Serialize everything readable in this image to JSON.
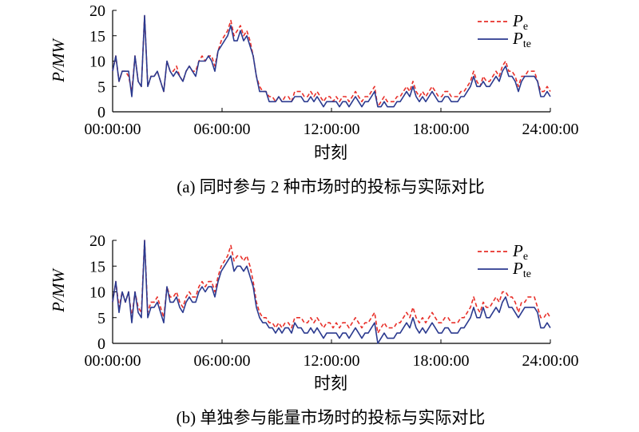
{
  "chart_data": [
    {
      "type": "line",
      "caption": "(a) 同时参与 2 种市场时的投标与实际对比",
      "xlabel": "时刻",
      "ylabel": "P/MW",
      "x_tick_labels": [
        "00:00:00",
        "06:00:00",
        "12:00:00",
        "18:00:00",
        "24:00:00"
      ],
      "xlim": [
        0,
        24
      ],
      "ylim": [
        0,
        20
      ],
      "y_ticks": [
        0,
        5,
        10,
        15,
        20
      ],
      "legend_position": "top-right",
      "colors": {
        "Pe": "#e8302a",
        "Pte": "#2b3a8f"
      },
      "series": [
        {
          "name": "Pe",
          "legend": {
            "main": "P",
            "sub": "e"
          },
          "style": "dashed",
          "color": "#e8302a",
          "values": [
            8,
            11,
            6,
            8,
            8,
            7,
            4,
            11,
            6,
            5,
            19,
            5,
            7,
            7,
            8,
            6,
            4,
            10,
            8,
            8,
            9,
            7,
            6,
            8,
            9,
            8,
            8,
            10,
            11,
            10,
            11,
            11,
            9,
            12,
            14,
            15,
            16,
            18,
            15,
            16,
            17,
            15,
            16,
            14,
            11,
            7,
            5,
            4,
            4,
            3,
            3,
            2,
            3,
            2,
            3,
            3,
            2,
            4,
            4,
            4,
            3,
            3,
            4,
            3,
            4,
            3,
            2,
            3,
            3,
            2,
            3,
            2,
            3,
            3,
            2,
            3,
            4,
            3,
            2,
            3,
            3,
            4,
            5,
            1,
            2,
            3,
            2,
            2,
            2,
            3,
            3,
            4,
            5,
            4,
            6,
            4,
            3,
            4,
            3,
            4,
            5,
            4,
            3,
            3,
            4,
            4,
            3,
            3,
            3,
            4,
            4,
            5,
            6,
            8,
            6,
            5,
            7,
            6,
            6,
            7,
            8,
            7,
            9,
            10,
            8,
            8,
            7,
            5,
            7,
            7,
            8,
            8,
            8,
            6,
            4,
            4,
            5,
            4
          ]
        },
        {
          "name": "Pte",
          "legend": {
            "main": "P",
            "sub": "te"
          },
          "style": "solid",
          "color": "#2b3a8f",
          "values": [
            8,
            11,
            6,
            8,
            8,
            8,
            3,
            11,
            6,
            5,
            19,
            5,
            7,
            7,
            8,
            6,
            4,
            10,
            8,
            7,
            8,
            7,
            6,
            8,
            9,
            8,
            7,
            10,
            10,
            10,
            11,
            10,
            8,
            12,
            13,
            14,
            15,
            17,
            14,
            14,
            16,
            14,
            15,
            13,
            11,
            7,
            4,
            4,
            4,
            2,
            2,
            2,
            3,
            2,
            2,
            2,
            2,
            3,
            3,
            3,
            2,
            2,
            3,
            2,
            3,
            2,
            1,
            2,
            2,
            2,
            2,
            1,
            2,
            2,
            1,
            2,
            3,
            2,
            1,
            2,
            2,
            3,
            4,
            1,
            1,
            2,
            1,
            1,
            1,
            2,
            2,
            3,
            4,
            3,
            5,
            3,
            2,
            3,
            2,
            3,
            4,
            3,
            2,
            2,
            3,
            3,
            2,
            2,
            2,
            3,
            3,
            4,
            5,
            7,
            5,
            5,
            6,
            5,
            5,
            6,
            7,
            6,
            8,
            9,
            7,
            7,
            6,
            4,
            6,
            7,
            7,
            7,
            7,
            6,
            3,
            3,
            4,
            3
          ]
        }
      ]
    },
    {
      "type": "line",
      "caption": "(b) 单独参与能量市场时的投标与实际对比",
      "xlabel": "时刻",
      "ylabel": "P/MW",
      "x_tick_labels": [
        "00:00:00",
        "06:00:00",
        "12:00:00",
        "18:00:00",
        "24:00:00"
      ],
      "xlim": [
        0,
        24
      ],
      "ylim": [
        0,
        20
      ],
      "y_ticks": [
        0,
        5,
        10,
        15,
        20
      ],
      "legend_position": "top-right",
      "colors": {
        "Pe": "#e8302a",
        "Pte": "#2b3a8f"
      },
      "series": [
        {
          "name": "Pe",
          "legend": {
            "main": "P",
            "sub": "e"
          },
          "style": "dashed",
          "color": "#e8302a",
          "values": [
            8,
            12,
            7,
            10,
            8,
            10,
            5,
            10,
            7,
            6,
            20,
            6,
            8,
            8,
            9,
            7,
            5,
            11,
            9,
            9,
            10,
            8,
            7,
            9,
            10,
            9,
            9,
            11,
            12,
            11,
            12,
            12,
            10,
            13,
            15,
            16,
            17,
            19,
            16,
            17,
            17,
            16,
            17,
            15,
            12,
            8,
            6,
            5,
            5,
            4,
            4,
            3,
            4,
            3,
            4,
            4,
            3,
            5,
            5,
            5,
            4,
            4,
            5,
            4,
            5,
            4,
            3,
            4,
            4,
            3,
            4,
            3,
            4,
            4,
            3,
            4,
            5,
            4,
            3,
            4,
            4,
            5,
            6,
            2,
            3,
            4,
            3,
            3,
            3,
            4,
            4,
            5,
            6,
            5,
            7,
            5,
            4,
            5,
            4,
            5,
            6,
            5,
            4,
            4,
            5,
            5,
            4,
            4,
            4,
            5,
            5,
            6,
            7,
            9,
            7,
            6,
            8,
            7,
            7,
            8,
            9,
            8,
            10,
            10,
            9,
            9,
            8,
            6,
            8,
            8,
            9,
            9,
            9,
            7,
            5,
            5,
            6,
            5
          ]
        },
        {
          "name": "Pte",
          "legend": {
            "main": "P",
            "sub": "te"
          },
          "style": "solid",
          "color": "#2b3a8f",
          "values": [
            8,
            12,
            6,
            10,
            8,
            10,
            4,
            10,
            6,
            5,
            20,
            5,
            7,
            7,
            8,
            6,
            4,
            11,
            8,
            8,
            9,
            7,
            6,
            8,
            9,
            8,
            8,
            10,
            11,
            10,
            11,
            11,
            9,
            12,
            14,
            15,
            16,
            17,
            14,
            15,
            15,
            14,
            15,
            13,
            11,
            7,
            5,
            4,
            4,
            3,
            3,
            2,
            3,
            2,
            3,
            3,
            2,
            4,
            3,
            3,
            2,
            2,
            3,
            2,
            3,
            2,
            1,
            2,
            2,
            2,
            2,
            1,
            2,
            2,
            1,
            2,
            3,
            2,
            1,
            2,
            2,
            3,
            4,
            0,
            1,
            2,
            1,
            1,
            1,
            2,
            2,
            3,
            4,
            3,
            5,
            3,
            2,
            3,
            2,
            3,
            4,
            3,
            2,
            2,
            3,
            3,
            2,
            2,
            2,
            3,
            3,
            4,
            5,
            7,
            5,
            5,
            7,
            5,
            5,
            6,
            7,
            6,
            8,
            9,
            7,
            7,
            6,
            5,
            6,
            7,
            7,
            7,
            7,
            6,
            3,
            3,
            4,
            3
          ]
        }
      ]
    }
  ]
}
